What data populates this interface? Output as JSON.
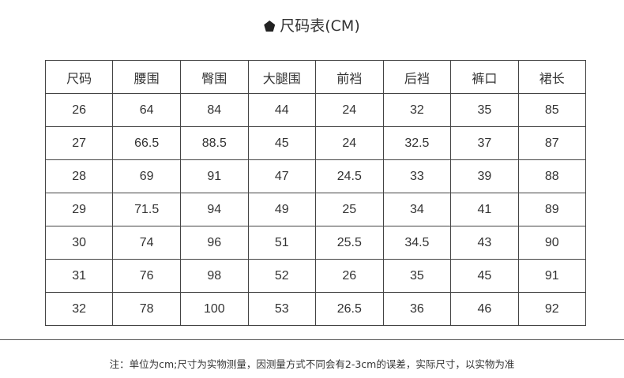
{
  "title": "尺码表(CM)",
  "title_icon": "pentagon-bullet-icon",
  "table": {
    "headers": [
      "尺码",
      "腰围",
      "臀围",
      "大腿围",
      "前裆",
      "后裆",
      "裤口",
      "裙长"
    ],
    "rows": [
      [
        "26",
        "64",
        "84",
        "44",
        "24",
        "32",
        "35",
        "85"
      ],
      [
        "27",
        "66.5",
        "88.5",
        "45",
        "24",
        "32.5",
        "37",
        "87"
      ],
      [
        "28",
        "69",
        "91",
        "47",
        "24.5",
        "33",
        "39",
        "88"
      ],
      [
        "29",
        "71.5",
        "94",
        "49",
        "25",
        "34",
        "41",
        "89"
      ],
      [
        "30",
        "74",
        "96",
        "51",
        "25.5",
        "34.5",
        "43",
        "90"
      ],
      [
        "31",
        "76",
        "98",
        "52",
        "26",
        "35",
        "45",
        "91"
      ],
      [
        "32",
        "78",
        "100",
        "53",
        "26.5",
        "36",
        "46",
        "92"
      ]
    ]
  },
  "note": "注：单位为cm;尺寸为实物测量，因测量方式不同会有2-3cm的误差，实际尺寸，以实物为准"
}
